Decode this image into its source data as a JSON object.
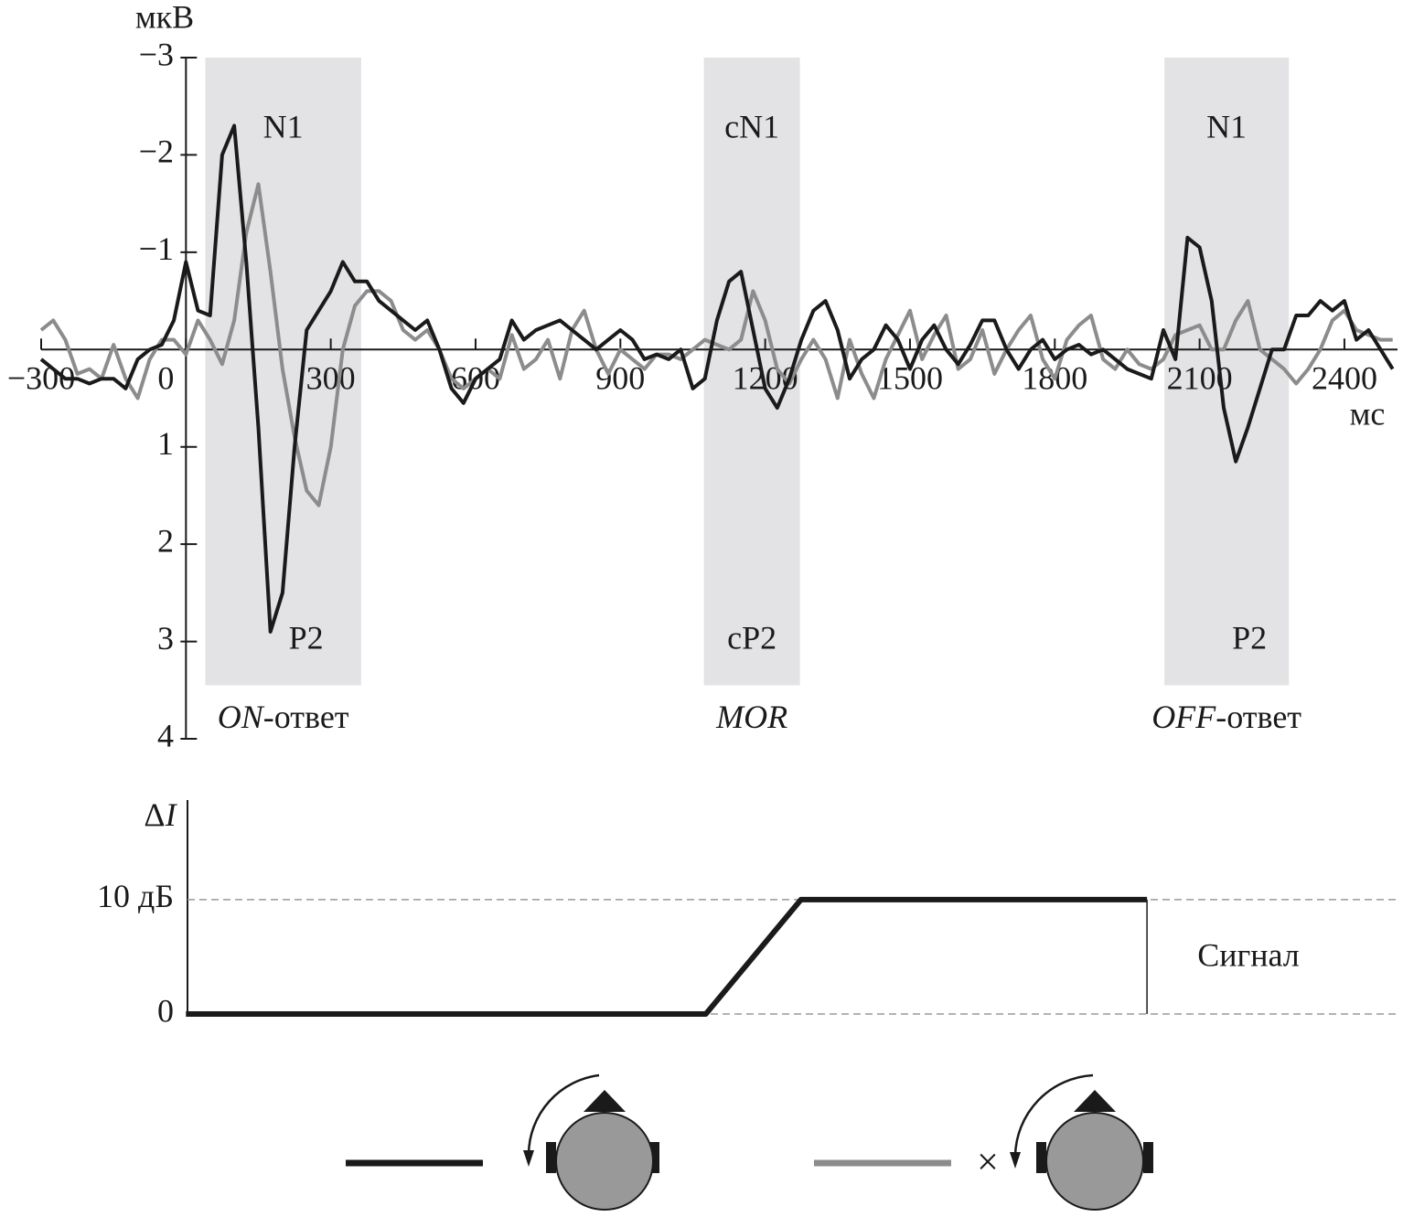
{
  "chart_data": [
    {
      "type": "line",
      "ylabel": "мкВ",
      "xlabel": "мс",
      "y_inverted": true,
      "xlim": [
        -300,
        2510
      ],
      "ylim": [
        -3,
        4
      ],
      "xticks": [
        {
          "value": -300,
          "label": "−300"
        },
        0,
        300,
        600,
        900,
        1200,
        1500,
        1800,
        2100,
        2400
      ],
      "yticks": [
        {
          "value": -3,
          "label": "−3"
        },
        {
          "value": -2,
          "label": "−2"
        },
        {
          "value": -1,
          "label": "−1"
        },
        1,
        2,
        3,
        4
      ],
      "regions": [
        {
          "x": [
            40,
            363
          ],
          "y": [
            -3,
            3.45
          ],
          "label_top": "N1",
          "label_bottom": "P2",
          "caption_italic": "ON",
          "caption": "-ответ"
        },
        {
          "x": [
            1073,
            1272
          ],
          "y": [
            -3,
            3.45
          ],
          "label_top": "cN1",
          "label_bottom": "cP2",
          "caption_italic": "MOR"
        },
        {
          "x": [
            2027,
            2285
          ],
          "y": [
            -3,
            3.45
          ],
          "label_top": "N1",
          "label_bottom": "P2",
          "caption_italic": "OFF",
          "caption": "-ответ"
        }
      ],
      "x": [
        -300,
        -275,
        -250,
        -225,
        -200,
        -175,
        -150,
        -125,
        -100,
        -75,
        -50,
        -25,
        0,
        25,
        50,
        75,
        100,
        125,
        150,
        175,
        200,
        225,
        250,
        275,
        300,
        325,
        350,
        375,
        400,
        425,
        450,
        475,
        500,
        525,
        550,
        575,
        600,
        625,
        650,
        675,
        700,
        725,
        750,
        775,
        800,
        825,
        850,
        875,
        900,
        925,
        950,
        975,
        1000,
        1025,
        1050,
        1075,
        1100,
        1125,
        1150,
        1175,
        1200,
        1225,
        1250,
        1275,
        1300,
        1325,
        1350,
        1375,
        1400,
        1425,
        1450,
        1475,
        1500,
        1525,
        1550,
        1575,
        1600,
        1625,
        1650,
        1675,
        1700,
        1725,
        1750,
        1775,
        1800,
        1825,
        1850,
        1875,
        1900,
        1925,
        1950,
        1975,
        2000,
        2025,
        2050,
        2075,
        2100,
        2125,
        2150,
        2175,
        2200,
        2225,
        2250,
        2275,
        2300,
        2325,
        2350,
        2375,
        2400,
        2425,
        2450,
        2475,
        2500
      ],
      "series": [
        {
          "color": "#1a1a1a",
          "values": [
            0.1,
            0.2,
            0.3,
            0.3,
            0.35,
            0.3,
            0.3,
            0.4,
            0.1,
            0,
            -0.05,
            -0.3,
            -0.9,
            -0.4,
            -0.35,
            -2.0,
            -2.3,
            -0.9,
            0.8,
            2.9,
            2.5,
            1.0,
            -0.2,
            -0.4,
            -0.6,
            -0.9,
            -0.7,
            -0.7,
            -0.5,
            -0.4,
            -0.3,
            -0.2,
            -0.3,
            0,
            0.4,
            0.55,
            0.3,
            0.2,
            0.1,
            -0.3,
            -0.1,
            -0.2,
            -0.25,
            -0.3,
            -0.2,
            -0.1,
            0,
            -0.1,
            -0.2,
            -0.1,
            0.1,
            0.05,
            0.1,
            0,
            0.4,
            0.3,
            -0.3,
            -0.7,
            -0.8,
            -0.2,
            0.4,
            0.6,
            0.3,
            -0.1,
            -0.4,
            -0.5,
            -0.2,
            0.3,
            0.1,
            0,
            -0.25,
            -0.1,
            0.2,
            -0.1,
            -0.25,
            0,
            0.15,
            -0.05,
            -0.3,
            -0.3,
            0,
            0.2,
            0,
            -0.1,
            0.1,
            0,
            -0.05,
            0.05,
            0,
            0.1,
            0.2,
            0.25,
            0.3,
            -0.2,
            0.1,
            -1.15,
            -1.05,
            -0.5,
            0.6,
            1.15,
            0.8,
            0.4,
            0,
            0,
            -0.35,
            -0.35,
            -0.5,
            -0.4,
            -0.5,
            -0.1,
            -0.2,
            0,
            0.2
          ]
        },
        {
          "color": "#8c8c8c",
          "legend_note": "×",
          "values": [
            -0.2,
            -0.3,
            -0.1,
            0.25,
            0.2,
            0.3,
            -0.05,
            0.3,
            0.5,
            0.1,
            -0.1,
            -0.1,
            0.05,
            -0.3,
            -0.1,
            0.15,
            -0.3,
            -1.2,
            -1.7,
            -0.8,
            0.2,
            0.9,
            1.45,
            1.6,
            1.0,
            0,
            -0.45,
            -0.6,
            -0.6,
            -0.5,
            -0.2,
            -0.1,
            -0.2,
            0,
            0.3,
            0.4,
            0.3,
            0.2,
            0.3,
            -0.15,
            0.2,
            0.1,
            -0.1,
            0.3,
            -0.2,
            -0.4,
            0,
            0.25,
            0,
            0.1,
            0.2,
            0.05,
            0.05,
            0.1,
            0,
            -0.1,
            -0.05,
            0,
            -0.1,
            -0.6,
            -0.3,
            0.2,
            0.35,
            0.1,
            -0.1,
            0.1,
            0.5,
            -0.1,
            0.25,
            0.5,
            0.1,
            -0.15,
            -0.4,
            0.1,
            -0.15,
            -0.35,
            0.2,
            0.1,
            -0.2,
            0.25,
            0,
            -0.2,
            -0.35,
            0.1,
            0.3,
            -0.1,
            -0.25,
            -0.35,
            0.1,
            0.2,
            0,
            0.15,
            0.2,
            0.1,
            -0.15,
            -0.2,
            -0.25,
            0,
            0,
            -0.3,
            -0.5,
            0,
            0.1,
            0.2,
            0.35,
            0.2,
            0,
            -0.3,
            -0.4,
            -0.2,
            -0.15,
            -0.1,
            -0.1
          ]
        }
      ]
    },
    {
      "type": "line",
      "ylabel_symbol": "Δ",
      "ylabel_var": "I",
      "annotation": "Сигнал",
      "xlim": [
        -300,
        2510
      ],
      "ylim": [
        0,
        18.7
      ],
      "yticks": [
        0,
        {
          "value": 10,
          "label": "10 дБ"
        }
      ],
      "grid": "dashed",
      "x": [
        0,
        1077,
        1274,
        1991,
        1991
      ],
      "values": [
        0,
        0,
        10,
        10,
        0
      ],
      "color": "#1a1a1a"
    }
  ]
}
